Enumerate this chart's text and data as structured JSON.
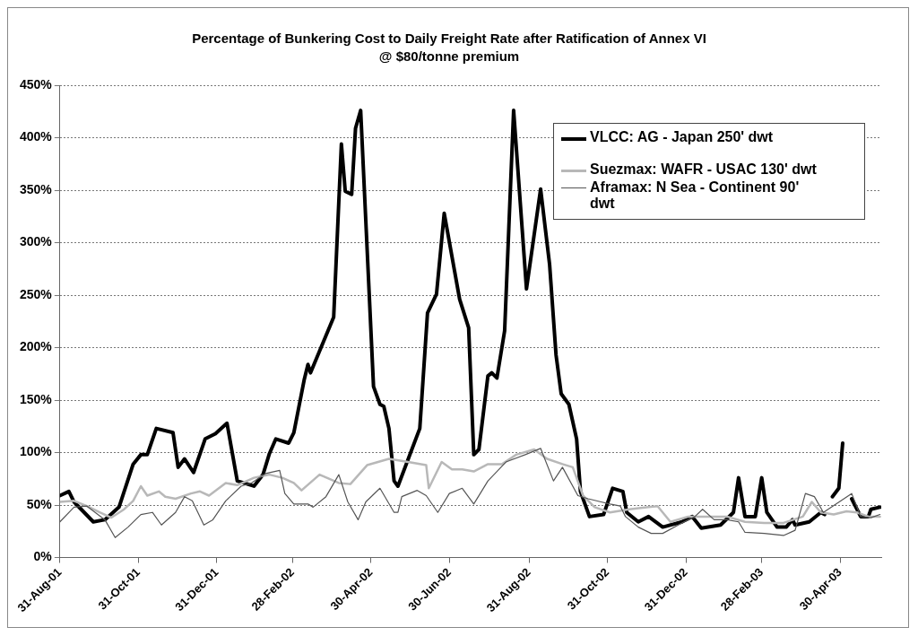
{
  "chart_data": {
    "type": "line",
    "title": "Percentage of Bunkering Cost to Daily Freight Rate after Ratification of Annex VI",
    "subtitle": "@ $80/tonne premium",
    "xlim": [
      "2001-08-31",
      "2003-06-01"
    ],
    "xticks": [
      {
        "value": "2001-08-31",
        "label": "31-Aug-01"
      },
      {
        "value": "2001-10-31",
        "label": "31-Oct-01"
      },
      {
        "value": "2001-12-31",
        "label": "31-Dec-01"
      },
      {
        "value": "2002-02-28",
        "label": "28-Feb-02"
      },
      {
        "value": "2002-04-30",
        "label": "30-Apr-02"
      },
      {
        "value": "2002-06-30",
        "label": "30-Jun-02"
      },
      {
        "value": "2002-08-31",
        "label": "31-Aug-02"
      },
      {
        "value": "2002-10-31",
        "label": "31-Oct-02"
      },
      {
        "value": "2002-12-31",
        "label": "31-Dec-02"
      },
      {
        "value": "2003-02-28",
        "label": "28-Feb-03"
      },
      {
        "value": "2003-04-30",
        "label": "30-Apr-03"
      }
    ],
    "ylim": [
      0,
      450
    ],
    "yticks": [
      {
        "value": 0,
        "label": "0%"
      },
      {
        "value": 50,
        "label": "50%"
      },
      {
        "value": 100,
        "label": "100%"
      },
      {
        "value": 150,
        "label": "150%"
      },
      {
        "value": 200,
        "label": "200%"
      },
      {
        "value": 250,
        "label": "250%"
      },
      {
        "value": 300,
        "label": "300%"
      },
      {
        "value": 350,
        "label": "350%"
      },
      {
        "value": 400,
        "label": "400%"
      },
      {
        "value": 450,
        "label": "450%"
      }
    ],
    "grid": "y",
    "legend": "top right",
    "marker": "none",
    "line_style": "solid",
    "series": [
      {
        "name": "VLCC: AG - Japan 250' dwt",
        "color": "#000000",
        "x": [
          "2001-08-31",
          "2001-09-07",
          "2001-09-11",
          "2001-09-26",
          "2001-10-05",
          "2001-10-16",
          "2001-10-27",
          "2001-11-02",
          "2001-11-07",
          "2001-11-14",
          "2001-11-27",
          "2001-12-01",
          "2001-12-06",
          "2001-12-13",
          "2001-12-22",
          "2001-12-30",
          "2002-01-08",
          "2002-01-16",
          "2002-01-29",
          "2002-02-05",
          "2002-02-10",
          "2002-02-15",
          "2002-02-25",
          "2002-03-01",
          "2002-03-09",
          "2002-03-12",
          "2002-03-14",
          "2002-03-31",
          "2002-04-01",
          "2002-04-07",
          "2002-04-10",
          "2002-04-15",
          "2002-04-18",
          "2002-04-22",
          "2002-05-02",
          "2002-05-07",
          "2002-05-10",
          "2002-05-14",
          "2002-05-18",
          "2002-05-21",
          "2002-06-07",
          "2002-06-13",
          "2002-06-20",
          "2002-06-26",
          "2002-07-08",
          "2002-07-15",
          "2002-07-19",
          "2002-07-23",
          "2002-07-30",
          "2002-08-02",
          "2002-08-06",
          "2002-08-12",
          "2002-08-19",
          "2002-08-29",
          "2002-09-09",
          "2002-09-16",
          "2002-09-21",
          "2002-09-25",
          "2002-10-01",
          "2002-10-07",
          "2002-10-10",
          "2002-10-17",
          "2002-10-28",
          "2002-11-04",
          "2002-11-12",
          "2002-11-15",
          "2002-11-24",
          "2002-12-02",
          "2002-12-13",
          "2002-12-28",
          "2003-01-05",
          "2003-01-12",
          "2003-01-27",
          "2003-02-06",
          "2003-02-10",
          "2003-02-15",
          "2003-02-23",
          "2003-02-28",
          "2003-03-04",
          "2003-03-12",
          "2003-03-19",
          "2003-03-24",
          "2003-03-26",
          "2003-04-06",
          "2003-04-15",
          "2003-04-18",
          "2003-04-22",
          "2003-04-24",
          "2003-04-29",
          "2003-05-02",
          "2003-05-06",
          "2003-05-09",
          "2003-05-16",
          "2003-05-22",
          "2003-05-24",
          "2003-05-31"
        ],
        "values": [
          59,
          63,
          53,
          34,
          36,
          48,
          89,
          98,
          98,
          123,
          119,
          86,
          94,
          81,
          113,
          118,
          128,
          73,
          68,
          79,
          99,
          113,
          109,
          119,
          169,
          184,
          176,
          226,
          229,
          394,
          349,
          346,
          409,
          426,
          163,
          146,
          144,
          123,
          73,
          68,
          123,
          233,
          251,
          328,
          246,
          219,
          98,
          103,
          173,
          176,
          171,
          216,
          426,
          256,
          351,
          279,
          193,
          156,
          146,
          113,
          63,
          39,
          41,
          66,
          63,
          43,
          34,
          39,
          29,
          34,
          39,
          28,
          31,
          43,
          76,
          39,
          39,
          76,
          43,
          29,
          29,
          36,
          31,
          34,
          43,
          41,
          null,
          58,
          66,
          109,
          null,
          56,
          39,
          39,
          46,
          48
        ]
      },
      {
        "name": "Suezmax: WAFR - USAC 130' dwt",
        "color": "#b8b8b8",
        "x": [
          "2001-08-31",
          "2001-09-11",
          "2001-09-21",
          "2001-10-01",
          "2001-10-10",
          "2001-10-20",
          "2001-10-27",
          "2001-11-02",
          "2001-11-07",
          "2001-11-16",
          "2001-11-21",
          "2001-11-29",
          "2001-12-11",
          "2001-12-18",
          "2001-12-25",
          "2002-01-07",
          "2002-01-16",
          "2002-01-29",
          "2002-02-10",
          "2002-02-20",
          "2002-03-01",
          "2002-03-07",
          "2002-03-21",
          "2002-04-05",
          "2002-04-14",
          "2002-04-27",
          "2002-05-14",
          "2002-05-29",
          "2002-06-12",
          "2002-06-14",
          "2002-06-24",
          "2002-07-02",
          "2002-07-10",
          "2002-07-19",
          "2002-07-30",
          "2002-08-10",
          "2002-08-21",
          "2002-09-04",
          "2002-09-14",
          "2002-09-26",
          "2002-10-04",
          "2002-10-12",
          "2002-10-21",
          "2002-11-02",
          "2002-11-17",
          "2002-12-02",
          "2002-12-09",
          "2002-12-19",
          "2003-01-02",
          "2003-01-17",
          "2003-02-01",
          "2003-02-15",
          "2003-03-02",
          "2003-03-17",
          "2003-04-01",
          "2003-04-08",
          "2003-04-15",
          "2003-04-25",
          "2003-05-05",
          "2003-05-13",
          "2003-05-22",
          "2003-05-31"
        ],
        "values": [
          53,
          54,
          49,
          43,
          38,
          46,
          54,
          68,
          59,
          63,
          58,
          56,
          61,
          63,
          59,
          71,
          69,
          76,
          79,
          76,
          71,
          64,
          79,
          71,
          70,
          88,
          94,
          91,
          88,
          66,
          91,
          84,
          84,
          82,
          89,
          89,
          98,
          103,
          94,
          89,
          86,
          59,
          48,
          43,
          46,
          48,
          49,
          34,
          39,
          39,
          39,
          34,
          33,
          33,
          39,
          53,
          43,
          41,
          44,
          43,
          39,
          39
        ]
      },
      {
        "name": "Aframax: N Sea - Continent 90' dwt",
        "color": "#555555",
        "x": [
          "2001-08-31",
          "2001-09-11",
          "2001-09-21",
          "2001-10-05",
          "2001-10-13",
          "2001-10-23",
          "2001-11-02",
          "2001-11-11",
          "2001-11-18",
          "2001-11-29",
          "2001-12-06",
          "2001-12-12",
          "2001-12-21",
          "2001-12-28",
          "2002-01-07",
          "2002-01-19",
          "2002-01-27",
          "2002-02-07",
          "2002-02-18",
          "2002-02-22",
          "2002-03-01",
          "2002-03-12",
          "2002-03-16",
          "2002-03-26",
          "2002-04-05",
          "2002-04-12",
          "2002-04-20",
          "2002-04-26",
          "2002-05-07",
          "2002-05-18",
          "2002-05-21",
          "2002-05-24",
          "2002-06-05",
          "2002-06-12",
          "2002-06-21",
          "2002-06-30",
          "2002-07-10",
          "2002-07-19",
          "2002-07-30",
          "2002-08-13",
          "2002-08-28",
          "2002-09-09",
          "2002-09-19",
          "2002-09-26",
          "2002-10-08",
          "2002-10-16",
          "2002-10-26",
          "2002-11-02",
          "2002-11-10",
          "2002-11-14",
          "2002-11-24",
          "2002-12-04",
          "2002-12-13",
          "2002-12-28",
          "2003-01-07",
          "2003-01-13",
          "2003-01-22",
          "2003-02-01",
          "2003-02-10",
          "2003-02-15",
          "2003-03-02",
          "2003-03-17",
          "2003-03-26",
          "2003-04-03",
          "2003-04-10",
          "2003-04-17",
          "2003-05-09",
          "2003-05-16",
          "2003-05-24",
          "2003-05-31"
        ],
        "values": [
          34,
          48,
          49,
          36,
          19,
          29,
          41,
          43,
          31,
          43,
          58,
          54,
          31,
          36,
          54,
          68,
          71,
          80,
          83,
          61,
          51,
          51,
          48,
          58,
          79,
          53,
          36,
          53,
          66,
          43,
          43,
          58,
          64,
          59,
          43,
          61,
          66,
          51,
          73,
          91,
          98,
          104,
          73,
          86,
          59,
          56,
          53,
          51,
          49,
          39,
          29,
          23,
          23,
          33,
          39,
          46,
          36,
          36,
          34,
          24,
          23,
          21,
          26,
          61,
          58,
          43,
          61,
          39,
          38,
          41
        ]
      }
    ]
  }
}
